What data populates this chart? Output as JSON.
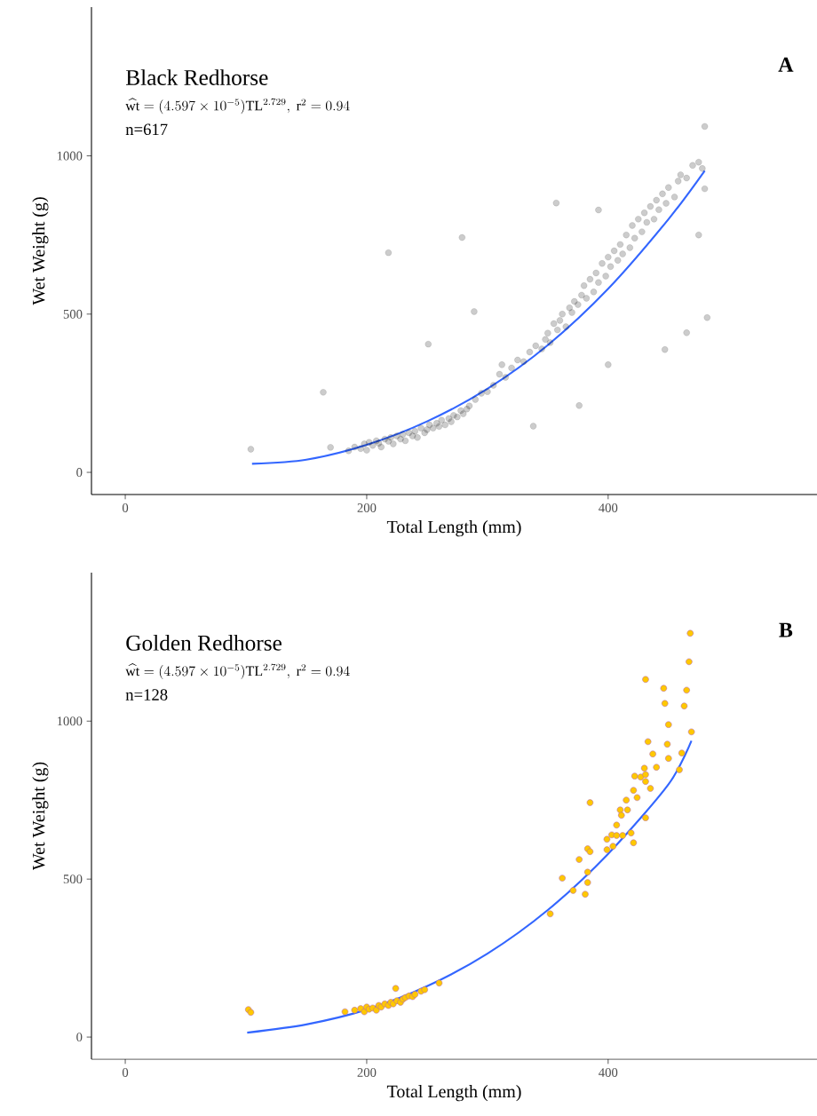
{
  "chart_data": [
    {
      "type": "scatter",
      "title": "Black Redhorse",
      "xlabel": "Total Length (mm)",
      "ylabel": "Wet Weight (g)",
      "annotations": [
        "\\widehat{\\mathrm{wt}} = (4.597 \\times 10^{-5})\\mathrm{TL}^{2.729},\\ \\mathrm{r}^{2} = 0.94",
        "n=617",
        "A"
      ],
      "xlim": [
        -28,
        573
      ],
      "ylim": [
        -70,
        1470
      ],
      "xticks": [
        0,
        200,
        400
      ],
      "yticks": [
        0,
        500,
        1000
      ],
      "series": [
        {
          "marker": "circle",
          "color": "#000000",
          "x": [
            104,
            164,
            170,
            218,
            279,
            289,
            251,
            480,
            357,
            392,
            482,
            465,
            447,
            400,
            376,
            338,
            475,
            480,
            185,
            190,
            195,
            198,
            200,
            202,
            205,
            208,
            210,
            212,
            215,
            218,
            220,
            222,
            225,
            228,
            230,
            232,
            235,
            238,
            240,
            242,
            245,
            248,
            250,
            252,
            255,
            258,
            260,
            262,
            265,
            268,
            270,
            272,
            275,
            278,
            280,
            283,
            285,
            290,
            295,
            300,
            305,
            310,
            312,
            315,
            320,
            325,
            330,
            335,
            340,
            345,
            348,
            350,
            352,
            355,
            358,
            360,
            362,
            365,
            368,
            370,
            372,
            375,
            378,
            380,
            382,
            385,
            388,
            390,
            392,
            395,
            398,
            400,
            402,
            405,
            408,
            410,
            412,
            415,
            418,
            420,
            422,
            425,
            428,
            430,
            432,
            435,
            438,
            440,
            442,
            445,
            448,
            450,
            455,
            458,
            460,
            465,
            470,
            475,
            478
          ],
          "values": [
            73,
            253,
            79,
            694,
            742,
            508,
            405,
            1093,
            851,
            829,
            489,
            441,
            388,
            340,
            211,
            146,
            750,
            896,
            68,
            80,
            75,
            90,
            70,
            95,
            85,
            100,
            92,
            80,
            105,
            98,
            110,
            90,
            115,
            105,
            120,
            100,
            125,
            115,
            130,
            110,
            140,
            125,
            135,
            150,
            140,
            155,
            145,
            165,
            150,
            170,
            160,
            180,
            175,
            195,
            185,
            200,
            210,
            230,
            250,
            255,
            275,
            310,
            340,
            300,
            330,
            355,
            350,
            380,
            400,
            390,
            420,
            440,
            410,
            470,
            450,
            480,
            500,
            460,
            520,
            505,
            540,
            530,
            560,
            590,
            550,
            610,
            570,
            630,
            600,
            660,
            620,
            680,
            650,
            700,
            670,
            720,
            690,
            750,
            710,
            780,
            740,
            800,
            760,
            820,
            790,
            840,
            800,
            860,
            830,
            880,
            850,
            900,
            870,
            920,
            940,
            930,
            970,
            980,
            960
          ]
        },
        {
          "type": "line",
          "color": "#3366ff",
          "x": [
            105,
            150,
            200,
            250,
            300,
            350,
            400,
            450,
            480
          ],
          "values": [
            27,
            40,
            87,
            161,
            264,
            402,
            580,
            800,
            953
          ]
        }
      ]
    },
    {
      "type": "scatter",
      "title": "Golden Redhorse",
      "xlabel": "Total Length (mm)",
      "ylabel": "Wet Weight (g)",
      "annotations": [
        "\\widehat{\\mathrm{wt}} = (4.597 \\times 10^{-5})\\mathrm{TL}^{2.729},\\ \\mathrm{r}^{2} = 0.94",
        "n=128",
        "B"
      ],
      "xlim": [
        -28,
        573
      ],
      "ylim": [
        -70,
        1470
      ],
      "xticks": [
        0,
        200,
        400
      ],
      "yticks": [
        0,
        500,
        1000
      ],
      "series": [
        {
          "marker": "circle",
          "color": "#ffc800",
          "x": [
            468,
            467,
            431,
            446,
            465,
            447,
            463,
            450,
            469,
            433,
            449,
            437,
            450,
            461,
            430,
            440,
            459,
            422,
            427,
            431,
            431,
            435,
            421,
            424,
            415,
            410,
            416,
            411,
            431,
            407,
            385,
            403,
            407,
            399,
            412,
            419,
            421,
            404,
            399,
            383,
            385,
            376,
            383,
            362,
            383,
            371,
            381,
            352,
            102,
            104,
            224,
            260,
            182,
            190,
            195,
            198,
            200,
            202,
            205,
            208,
            210,
            212,
            215,
            218,
            220,
            222,
            225,
            228,
            230,
            232,
            235,
            238,
            240,
            245,
            248
          ],
          "values": [
            1278,
            1188,
            1132,
            1104,
            1098,
            1056,
            1048,
            989,
            966,
            935,
            927,
            896,
            882,
            899,
            851,
            854,
            846,
            826,
            823,
            831,
            809,
            787,
            781,
            758,
            750,
            719,
            719,
            702,
            694,
            671,
            742,
            640,
            638,
            626,
            638,
            646,
            615,
            604,
            593,
            596,
            587,
            562,
            522,
            503,
            489,
            464,
            452,
            390,
            87,
            78,
            154,
            171,
            80,
            85,
            90,
            80,
            95,
            88,
            92,
            85,
            100,
            95,
            105,
            100,
            110,
            105,
            115,
            110,
            120,
            125,
            130,
            128,
            135,
            145,
            150
          ]
        },
        {
          "type": "line",
          "color": "#3366ff",
          "x": [
            101,
            150,
            200,
            250,
            300,
            350,
            400,
            450,
            469
          ],
          "values": [
            14,
            40,
            87,
            161,
            264,
            402,
            580,
            800,
            938
          ]
        }
      ]
    }
  ]
}
